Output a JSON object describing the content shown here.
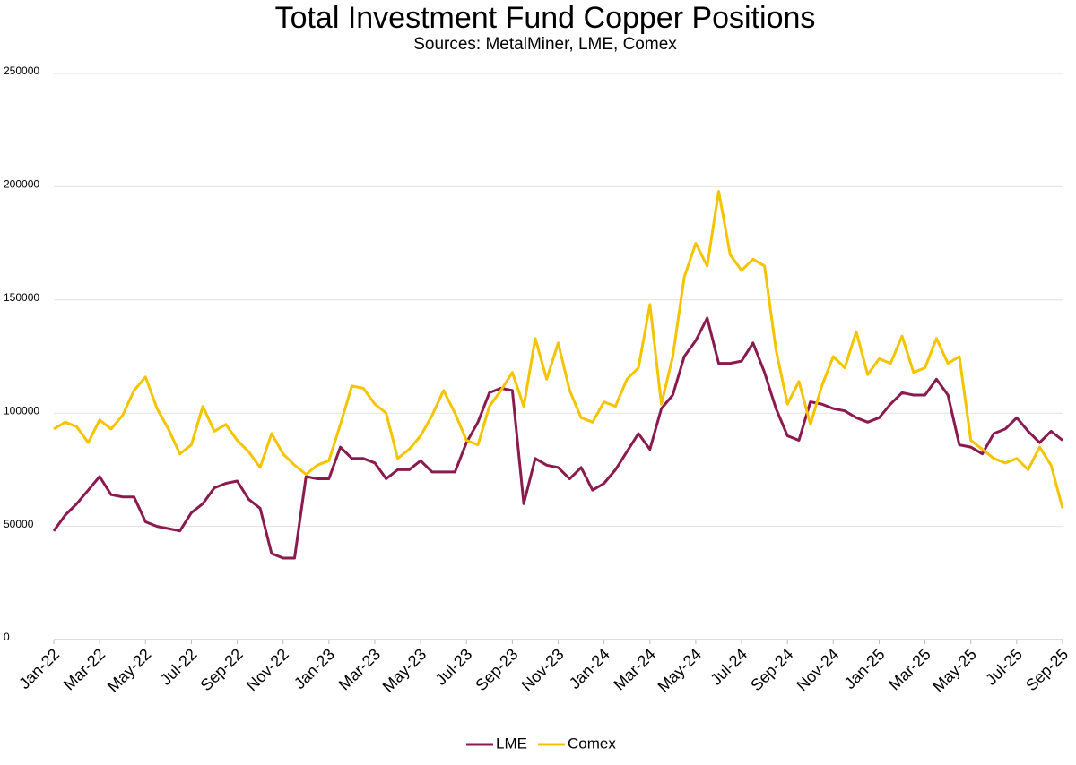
{
  "chart_data": {
    "type": "line",
    "title": "Total Investment Fund Copper Positions",
    "subtitle": "Sources: MetalMiner, LME, Comex",
    "categories": [
      "Jan-22",
      null,
      null,
      null,
      "Mar-22",
      null,
      null,
      null,
      "May-22",
      null,
      null,
      null,
      "Jul-22",
      null,
      null,
      null,
      "Sep-22",
      null,
      null,
      null,
      "Nov-22",
      null,
      null,
      null,
      "Jan-23",
      null,
      null,
      null,
      "Mar-23",
      null,
      null,
      null,
      "May-23",
      null,
      null,
      null,
      "Jul-23",
      null,
      null,
      null,
      "Sep-23",
      null,
      null,
      null,
      "Nov-23",
      null,
      null,
      null,
      "Jan-24",
      null,
      null,
      null,
      "Mar-24",
      null,
      null,
      null,
      "May-24",
      null,
      null,
      null,
      "Jul-24",
      null,
      null,
      null,
      "Sep-24",
      null,
      null,
      null,
      "Nov-24",
      null,
      null,
      null,
      "Jan-25",
      null,
      null,
      null,
      "Mar-25",
      null,
      null,
      null,
      "May-25",
      null,
      null,
      null,
      "Jul-25",
      null,
      null,
      null,
      "Sep-25"
    ],
    "series": [
      {
        "name": "LME",
        "color": "#8b1a4f",
        "values": [
          48000,
          55000,
          60000,
          66000,
          72000,
          64000,
          63000,
          63000,
          52000,
          50000,
          49000,
          48000,
          56000,
          60000,
          67000,
          69000,
          70000,
          62000,
          58000,
          38000,
          36000,
          36000,
          72000,
          71000,
          71000,
          85000,
          80000,
          80000,
          78000,
          71000,
          75000,
          75000,
          79000,
          74000,
          74000,
          74000,
          87000,
          96000,
          109000,
          111000,
          110000,
          60000,
          80000,
          77000,
          76000,
          71000,
          76000,
          66000,
          69000,
          75000,
          83000,
          91000,
          84000,
          102000,
          108000,
          125000,
          132000,
          142000,
          122000,
          122000,
          123000,
          131000,
          118000,
          102000,
          90000,
          88000,
          105000,
          104000,
          102000,
          101000,
          98000,
          96000,
          98000,
          104000,
          109000,
          108000,
          108000,
          115000,
          108000,
          86000,
          85000,
          82000,
          91000,
          93000,
          98000,
          92000,
          87000,
          92000,
          88000
        ]
      },
      {
        "name": "Comex",
        "color": "#f5c400",
        "values": [
          93000,
          96000,
          94000,
          87000,
          97000,
          93000,
          99000,
          110000,
          116000,
          102000,
          93000,
          82000,
          86000,
          103000,
          92000,
          95000,
          88000,
          83000,
          76000,
          91000,
          82000,
          77000,
          73000,
          77000,
          79000,
          95000,
          112000,
          111000,
          104000,
          100000,
          80000,
          84000,
          90000,
          99000,
          110000,
          100000,
          88000,
          86000,
          103000,
          110000,
          118000,
          103000,
          133000,
          115000,
          131000,
          110000,
          98000,
          96000,
          105000,
          103000,
          115000,
          120000,
          148000,
          104000,
          125000,
          160000,
          175000,
          165000,
          198000,
          170000,
          163000,
          168000,
          165000,
          128000,
          104000,
          114000,
          95000,
          112000,
          125000,
          120000,
          136000,
          117000,
          124000,
          122000,
          134000,
          118000,
          120000,
          133000,
          122000,
          125000,
          88000,
          84000,
          80000,
          78000,
          80000,
          75000,
          85000,
          77000,
          58000
        ]
      }
    ],
    "ylim": [
      0,
      250000
    ],
    "yticks": [
      0,
      50000,
      100000,
      150000,
      200000,
      250000
    ],
    "grid": true,
    "legend": "bottom"
  }
}
